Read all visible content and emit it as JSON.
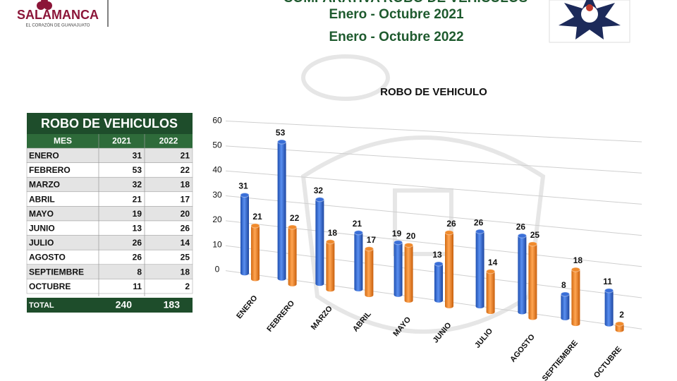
{
  "header": {
    "brand": "SALAMANCA",
    "tagline": "EL CORAZÓN DE GUANAJUATO",
    "title": "COMPARATIVA ROBO DE VEHICULOS",
    "period_1": "Enero - Octubre 2021",
    "period_2": "Enero - Octubre 2022"
  },
  "table": {
    "title": "ROBO DE VEHICULOS",
    "header": [
      "MES",
      "2021",
      "2022"
    ],
    "rows": [
      [
        "ENERO",
        31,
        21
      ],
      [
        "FEBRERO",
        53,
        22
      ],
      [
        "MARZO",
        32,
        18
      ],
      [
        "ABRIL",
        21,
        17
      ],
      [
        "MAYO",
        19,
        20
      ],
      [
        "JUNIO",
        13,
        26
      ],
      [
        "JULIO",
        26,
        14
      ],
      [
        "AGOSTO",
        26,
        25
      ],
      [
        "SEPTIEMBRE",
        8,
        18
      ],
      [
        "OCTUBRE",
        11,
        2
      ]
    ],
    "total": [
      "TOTAL",
      240,
      183
    ]
  },
  "chart_data": {
    "type": "bar",
    "title": "ROBO DE VEHICULO",
    "categories": [
      "ENERO",
      "FEBRERO",
      "MARZO",
      "ABRIL",
      "MAYO",
      "JUNIO",
      "JULIO",
      "AGOSTO",
      "SEPTIEMBRE",
      "OCTUBRE"
    ],
    "series": [
      {
        "color": "#3a6fd8",
        "values": [
          31,
          53,
          32,
          21,
          19,
          13,
          26,
          26,
          8,
          11
        ]
      },
      {
        "color": "#f08a2c",
        "values": [
          21,
          22,
          18,
          17,
          20,
          26,
          14,
          25,
          18,
          2
        ]
      }
    ],
    "ylim": [
      0,
      60
    ],
    "yticks": [
      0,
      10,
      20,
      30,
      40,
      50,
      60
    ],
    "grid": true
  }
}
